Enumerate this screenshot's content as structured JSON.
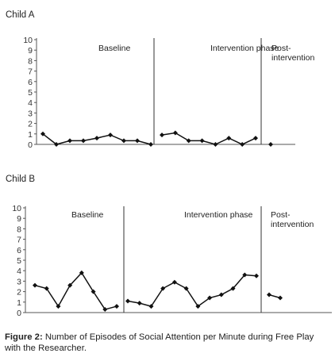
{
  "caption": {
    "label": "Figure 2:",
    "text": "Number of Episodes of Social Attention per Minute during Free Play with the Researcher."
  },
  "chart_data": [
    {
      "type": "line",
      "title": "Child A",
      "ylim": [
        0,
        10
      ],
      "yticks": [
        "0",
        "1",
        "2",
        "3",
        "4",
        "5",
        "6",
        "7",
        "8",
        "9",
        "10"
      ],
      "phases": [
        "Baseline",
        "Intervention phase",
        "Post-\nintervention"
      ],
      "series": [
        {
          "phase": "Baseline",
          "values": [
            1.0,
            0.0,
            0.35,
            0.35,
            0.6,
            0.9,
            0.35,
            0.35,
            0.0
          ]
        },
        {
          "phase": "Intervention phase",
          "values": [
            0.9,
            1.1,
            0.35,
            0.35,
            0.0,
            0.6,
            0.0,
            0.6
          ]
        },
        {
          "phase": "Post-intervention",
          "values": [
            0.0
          ]
        }
      ],
      "colors": {
        "line": "#111111"
      }
    },
    {
      "type": "line",
      "title": "Child B",
      "ylim": [
        0,
        10
      ],
      "yticks": [
        "0",
        "1",
        "2",
        "3",
        "4",
        "5",
        "6",
        "7",
        "8",
        "9",
        "10"
      ],
      "phases": [
        "Baseline",
        "Intervention phase",
        "Post-\nintervention"
      ],
      "series": [
        {
          "phase": "Baseline",
          "values": [
            2.6,
            2.3,
            0.6,
            2.6,
            3.8,
            2.0,
            0.3,
            0.6
          ]
        },
        {
          "phase": "Intervention phase",
          "values": [
            1.1,
            0.9,
            0.6,
            2.3,
            2.9,
            2.3,
            0.6,
            1.4,
            1.7,
            2.3,
            3.6,
            3.5
          ]
        },
        {
          "phase": "Post-intervention",
          "values": [
            1.7,
            1.4
          ]
        }
      ],
      "colors": {
        "line": "#111111"
      }
    }
  ]
}
